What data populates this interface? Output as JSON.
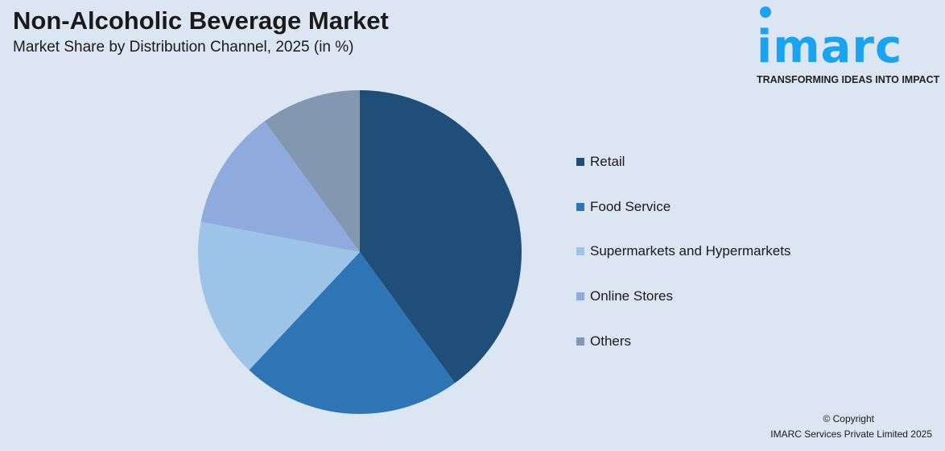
{
  "header": {
    "title": "Non-Alcoholic Beverage Market",
    "subtitle": "Market Share by Distribution Channel, 2025 (in %)"
  },
  "logo": {
    "text": "imarc",
    "tagline": "TRANSFORMING IDEAS INTO IMPACT",
    "color": "#1aa3f0"
  },
  "chart_data": {
    "type": "pie",
    "title": "Non-Alcoholic Beverage Market",
    "subtitle": "Market Share by Distribution Channel, 2025 (in %)",
    "categories": [
      "Retail",
      "Food Service",
      "Supermarkets and Hypermarkets",
      "Online Stores",
      "Others"
    ],
    "values": [
      40,
      22,
      16,
      12,
      10
    ],
    "colors": [
      "#1f4e79",
      "#2e75b6",
      "#9dc3e6",
      "#8faadc",
      "#8497b0"
    ],
    "start": "12 o'clock, clockwise",
    "legend_position": "right"
  },
  "footer": {
    "copyright": "© Copyright",
    "company": "IMARC Services Private Limited 2025"
  }
}
